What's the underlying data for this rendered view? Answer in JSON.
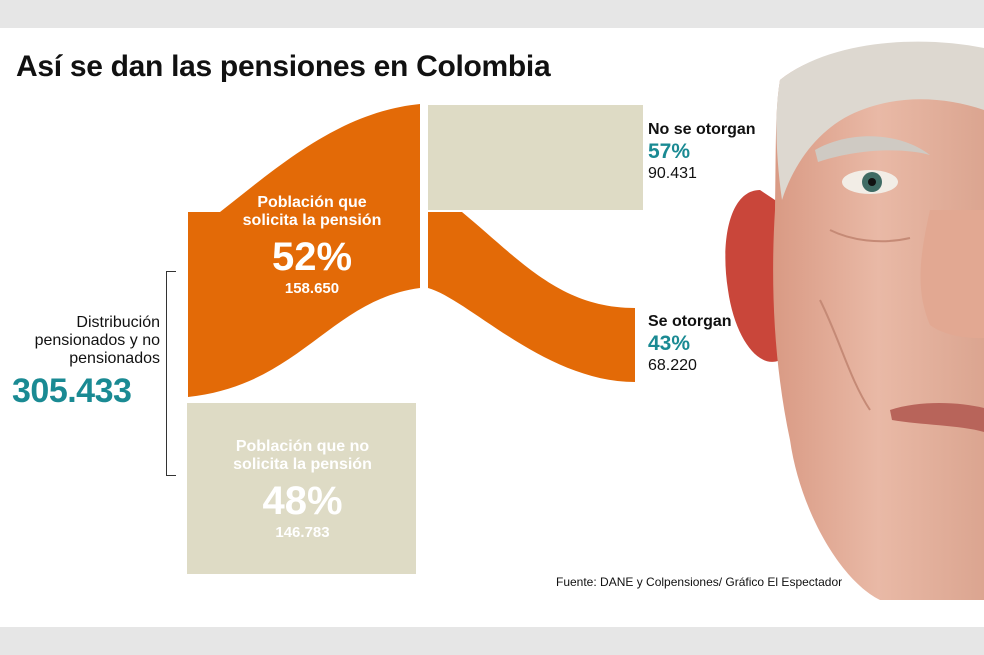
{
  "title": "Así se dan las pensiones en Colombia",
  "total": {
    "label": "Distribución pensionados y no pensionados",
    "value": "305.433"
  },
  "groups": {
    "solicita": {
      "label": "Población que solicita la pensión",
      "percent": "52%",
      "count": "158.650"
    },
    "no_solicita": {
      "label": "Población que no solicita la pensión",
      "percent": "48%",
      "count": "146.783"
    }
  },
  "outcomes": {
    "no_otorgan": {
      "label": "No se otorgan",
      "percent": "57%",
      "count": "90.431"
    },
    "otorgan": {
      "label": "Se otorgan",
      "percent": "43%",
      "count": "68.220"
    }
  },
  "source": "Fuente: DANE y Colpensiones/ Gráfico El Espectador",
  "colors": {
    "orange": "#e36a07",
    "beige": "#dedbc5",
    "teal": "#1a8a93"
  },
  "icons": [
    "elderly-man-portrait"
  ]
}
